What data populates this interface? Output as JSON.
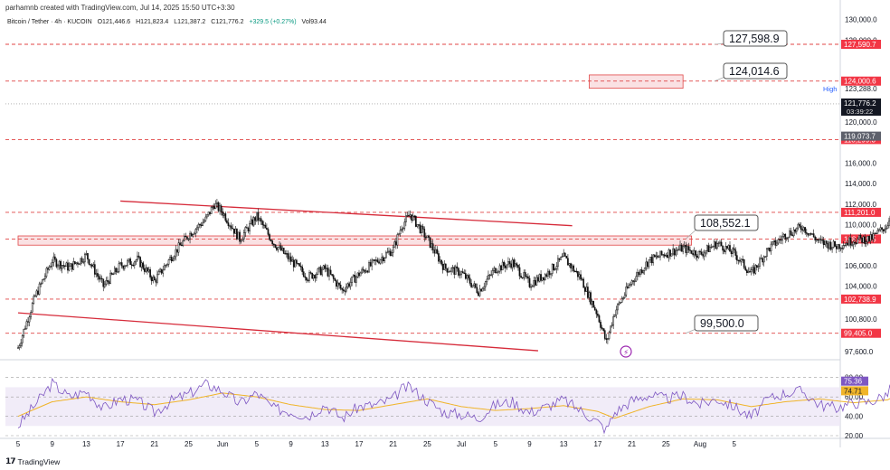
{
  "credit": "parhamnb created with TradingView.com, Jul 14, 2025 15:50 UTC+3:30",
  "header": {
    "symbol": "Bitcoin / Tether · 4h · KUCOIN",
    "open": "O121,446.6",
    "high": "H121,823.4",
    "low": "L121,387.2",
    "close": "C121,776.2",
    "change": "+329.5 (+0.27%)",
    "volume": "Vol93.44"
  },
  "footer": {
    "brand": "TradingView"
  },
  "colors": {
    "level_line": "#e04646",
    "level_badge": "#f23645",
    "trend_line": "#d62b3a",
    "zone_fill": "#f8d7da",
    "rsi_line": "#7e57c2",
    "rsi_ma": "#f0b429",
    "rsi_band": "#ede7f6",
    "candle": "#111111"
  },
  "chart_data": {
    "type": "candlestick",
    "ylim": [
      97000,
      130500
    ],
    "y_ticks": [
      "130,000.0",
      "128,000.0",
      "123,288.0",
      "120,000.0",
      "116,000.0",
      "114,000.0",
      "112,000.0",
      "110,000.0",
      "106,000.0",
      "104,000.0",
      "100,800.0",
      "97,600.0"
    ],
    "x_ticks": [
      "5",
      "9",
      "13",
      "17",
      "21",
      "25",
      "Jun",
      "5",
      "9",
      "13",
      "17",
      "21",
      "25",
      "Jul",
      "5",
      "9",
      "13",
      "17",
      "21",
      "25",
      "Aug",
      "5"
    ],
    "horizontal_levels": [
      {
        "value": 127590.7,
        "label": "127,590.7",
        "callout": "127,598.9"
      },
      {
        "value": 124000.6,
        "label": "124,000.6",
        "callout": "124,014.6"
      },
      {
        "value": 118299.3,
        "label": "118,299.3",
        "callout": ""
      },
      {
        "value": 111201.0,
        "label": "111,201.0",
        "callout": ""
      },
      {
        "value": 108599.5,
        "label": "108,599.5",
        "callout": "108,552.1"
      },
      {
        "value": 102738.9,
        "label": "102,738.9",
        "callout": ""
      },
      {
        "value": 99405.0,
        "label": "99,405.0",
        "callout": "99,500.0"
      }
    ],
    "price_badges": [
      {
        "value": 121776.2,
        "label": "121,776.2",
        "sublabel": "03:39:22"
      },
      {
        "value": 119073.7,
        "label": "119,073.7"
      }
    ],
    "high_marker": {
      "value": 123288.0,
      "label": "High"
    },
    "trendlines": [
      {
        "from": [
          "May 17",
          112300
        ],
        "to": [
          "Jul 9",
          109900
        ]
      },
      {
        "from": [
          "May 5",
          101400
        ],
        "to": [
          "Jul 5",
          97700
        ]
      }
    ],
    "zones": [
      {
        "from": [
          "Jul 11",
          124600
        ],
        "to": [
          "Jul 22",
          123300
        ]
      },
      {
        "from": [
          "May 5",
          108900
        ],
        "to": [
          "Jul 23",
          108000
        ]
      }
    ],
    "closes": [
      [
        0,
        98000
      ],
      [
        2,
        103000
      ],
      [
        4,
        106500
      ],
      [
        6,
        105800
      ],
      [
        8,
        107000
      ],
      [
        10,
        104000
      ],
      [
        12,
        106000
      ],
      [
        14,
        106600
      ],
      [
        16,
        104500
      ],
      [
        18,
        106900
      ],
      [
        20,
        109000
      ],
      [
        22,
        110500
      ],
      [
        23,
        112000
      ],
      [
        24,
        111200
      ],
      [
        26,
        108600
      ],
      [
        28,
        110800
      ],
      [
        30,
        108200
      ],
      [
        32,
        106500
      ],
      [
        34,
        104900
      ],
      [
        36,
        105700
      ],
      [
        38,
        103600
      ],
      [
        40,
        105200
      ],
      [
        42,
        106400
      ],
      [
        44,
        107600
      ],
      [
        45,
        109900
      ],
      [
        46,
        111000
      ],
      [
        48,
        108600
      ],
      [
        50,
        105800
      ],
      [
        52,
        105300
      ],
      [
        54,
        103500
      ],
      [
        56,
        105700
      ],
      [
        58,
        106300
      ],
      [
        60,
        104200
      ],
      [
        62,
        105200
      ],
      [
        64,
        106800
      ],
      [
        66,
        104800
      ],
      [
        68,
        101200
      ],
      [
        69,
        98500
      ],
      [
        70,
        101500
      ],
      [
        72,
        104500
      ],
      [
        74,
        106500
      ],
      [
        76,
        107200
      ],
      [
        78,
        107700
      ],
      [
        80,
        107100
      ],
      [
        82,
        108200
      ],
      [
        84,
        107200
      ],
      [
        86,
        105200
      ],
      [
        88,
        107600
      ],
      [
        90,
        109000
      ],
      [
        92,
        109800
      ],
      [
        94,
        108300
      ],
      [
        96,
        107900
      ],
      [
        98,
        108500
      ],
      [
        100,
        108600
      ],
      [
        102,
        110000
      ],
      [
        103,
        113500
      ],
      [
        104,
        118300
      ],
      [
        106,
        119500
      ],
      [
        108,
        118800
      ],
      [
        110,
        120600
      ],
      [
        112,
        121776
      ]
    ],
    "rsi": {
      "levels": [
        80,
        60,
        40,
        20
      ],
      "ylim": [
        20,
        90
      ],
      "band": [
        70,
        30
      ],
      "value": 75.36,
      "value_label": "75.36",
      "ma": 74.71,
      "ma_label": "74.71",
      "y_ticks": [
        "80.00",
        "60.00",
        "40.00",
        "20.00"
      ],
      "series": [
        [
          0,
          30
        ],
        [
          2,
          52
        ],
        [
          4,
          74
        ],
        [
          6,
          60
        ],
        [
          8,
          66
        ],
        [
          10,
          48
        ],
        [
          12,
          58
        ],
        [
          14,
          56
        ],
        [
          16,
          44
        ],
        [
          18,
          56
        ],
        [
          20,
          63
        ],
        [
          22,
          73
        ],
        [
          23,
          70
        ],
        [
          24,
          66
        ],
        [
          26,
          53
        ],
        [
          28,
          64
        ],
        [
          30,
          48
        ],
        [
          32,
          45
        ],
        [
          34,
          40
        ],
        [
          36,
          52
        ],
        [
          38,
          38
        ],
        [
          40,
          50
        ],
        [
          42,
          52
        ],
        [
          44,
          58
        ],
        [
          45,
          68
        ],
        [
          46,
          70
        ],
        [
          48,
          56
        ],
        [
          50,
          44
        ],
        [
          52,
          42
        ],
        [
          54,
          38
        ],
        [
          56,
          52
        ],
        [
          58,
          55
        ],
        [
          60,
          44
        ],
        [
          62,
          50
        ],
        [
          64,
          57
        ],
        [
          66,
          46
        ],
        [
          68,
          34
        ],
        [
          69,
          26
        ],
        [
          70,
          44
        ],
        [
          72,
          56
        ],
        [
          74,
          62
        ],
        [
          76,
          58
        ],
        [
          78,
          61
        ],
        [
          80,
          52
        ],
        [
          82,
          58
        ],
        [
          84,
          50
        ],
        [
          86,
          39
        ],
        [
          88,
          58
        ],
        [
          90,
          64
        ],
        [
          92,
          66
        ],
        [
          94,
          52
        ],
        [
          96,
          49
        ],
        [
          98,
          54
        ],
        [
          100,
          55
        ],
        [
          102,
          63
        ],
        [
          103,
          76
        ],
        [
          104,
          85
        ],
        [
          106,
          82
        ],
        [
          108,
          77
        ],
        [
          110,
          80
        ],
        [
          112,
          75
        ]
      ],
      "ma_series": [
        [
          0,
          40
        ],
        [
          4,
          55
        ],
        [
          8,
          60
        ],
        [
          12,
          55
        ],
        [
          16,
          52
        ],
        [
          20,
          57
        ],
        [
          24,
          64
        ],
        [
          28,
          60
        ],
        [
          32,
          52
        ],
        [
          36,
          47
        ],
        [
          40,
          46
        ],
        [
          44,
          52
        ],
        [
          48,
          58
        ],
        [
          52,
          50
        ],
        [
          56,
          46
        ],
        [
          60,
          48
        ],
        [
          64,
          51
        ],
        [
          68,
          45
        ],
        [
          70,
          38
        ],
        [
          74,
          50
        ],
        [
          78,
          58
        ],
        [
          82,
          57
        ],
        [
          86,
          50
        ],
        [
          90,
          55
        ],
        [
          94,
          58
        ],
        [
          98,
          54
        ],
        [
          102,
          57
        ],
        [
          104,
          66
        ],
        [
          108,
          76
        ],
        [
          112,
          75
        ]
      ]
    }
  }
}
